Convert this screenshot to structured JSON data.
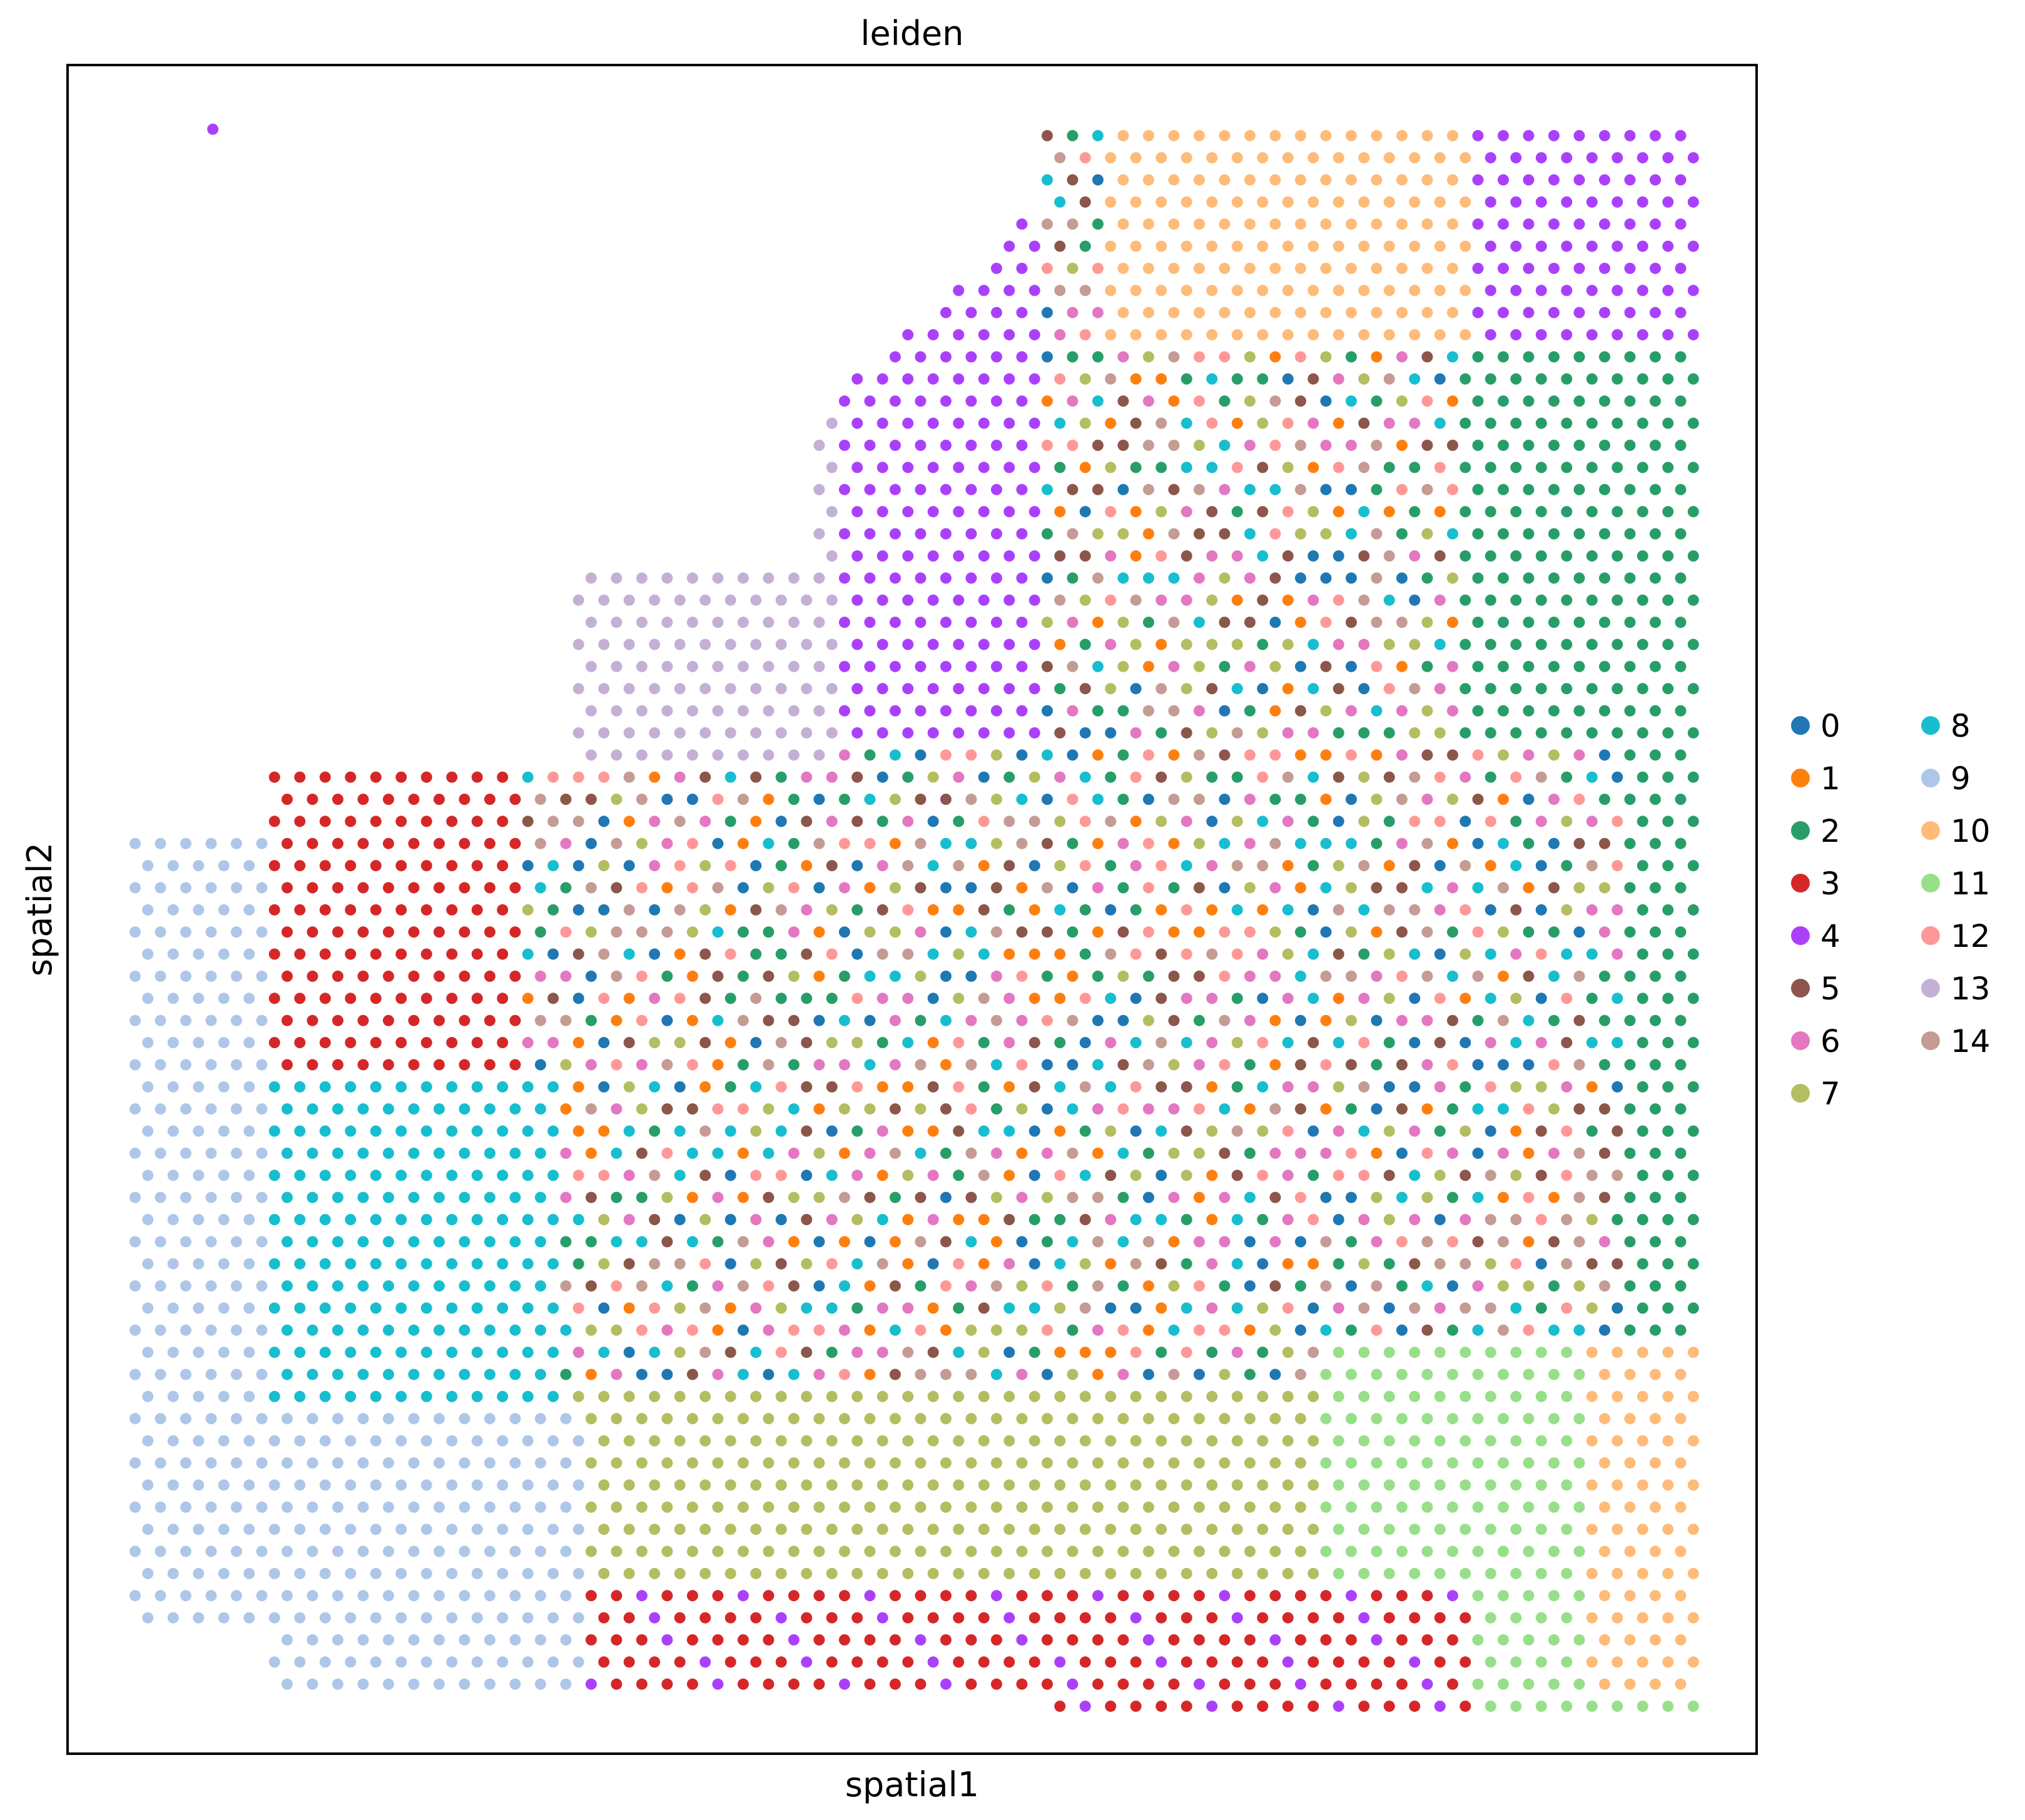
{
  "chart_data": {
    "type": "scatter",
    "title": "leiden",
    "xlabel": "spatial1",
    "ylabel": "spatial2",
    "xlim": [
      0,
      100
    ],
    "ylim": [
      0,
      100
    ],
    "grid": false,
    "ticks": "none",
    "legend_position": "right",
    "legend": {
      "columns": 2,
      "entries": [
        {
          "label": "0",
          "color": "#1f77b4"
        },
        {
          "label": "1",
          "color": "#ff7f0e"
        },
        {
          "label": "2",
          "color": "#279e68"
        },
        {
          "label": "3",
          "color": "#d62728"
        },
        {
          "label": "4",
          "color": "#aa40fc"
        },
        {
          "label": "5",
          "color": "#8c564b"
        },
        {
          "label": "6",
          "color": "#e377c2"
        },
        {
          "label": "7",
          "color": "#b5bd61"
        },
        {
          "label": "8",
          "color": "#17becf"
        },
        {
          "label": "9",
          "color": "#aec7e8"
        },
        {
          "label": "10",
          "color": "#ffbb78"
        },
        {
          "label": "11",
          "color": "#98df8a"
        },
        {
          "label": "12",
          "color": "#ff9896"
        },
        {
          "label": "13",
          "color": "#c5b0d5"
        },
        {
          "label": "14",
          "color": "#c49c94"
        }
      ]
    },
    "spots": {
      "description_of_encoding": "",
      "row_step": 1.31,
      "col_step": 1.5,
      "clusters": [
        {
          "cluster": "4",
          "x_range": [
            44,
            61
          ],
          "y_range": [
            60,
            91
          ]
        },
        {
          "cluster": "10",
          "x_range": [
            61,
            95
          ],
          "y_range": [
            83,
            96
          ]
        },
        {
          "cluster": "2",
          "x_range": [
            73,
            96
          ],
          "y_range": [
            60,
            90
          ]
        },
        {
          "cluster": "13",
          "x_range": [
            31,
            46
          ],
          "y_range": [
            58,
            70
          ]
        },
        {
          "cluster": "3",
          "x_range": [
            10,
            27
          ],
          "y_range": [
            33,
            56
          ]
        },
        {
          "cluster": "9",
          "x_range": [
            4,
            22
          ],
          "y_range": [
            7,
            54
          ]
        },
        {
          "cluster": "8",
          "x_range": [
            13,
            29
          ],
          "y_range": [
            20,
            40
          ]
        },
        {
          "cluster": "7",
          "x_range": [
            27,
            73
          ],
          "y_range": [
            10,
            55
          ]
        },
        {
          "cluster": "11",
          "x_range": [
            74,
            96
          ],
          "y_range": [
            4,
            24
          ]
        },
        {
          "cluster": "12",
          "x_range": [
            46,
            85
          ],
          "y_range": [
            24,
            50
          ]
        }
      ]
    }
  }
}
